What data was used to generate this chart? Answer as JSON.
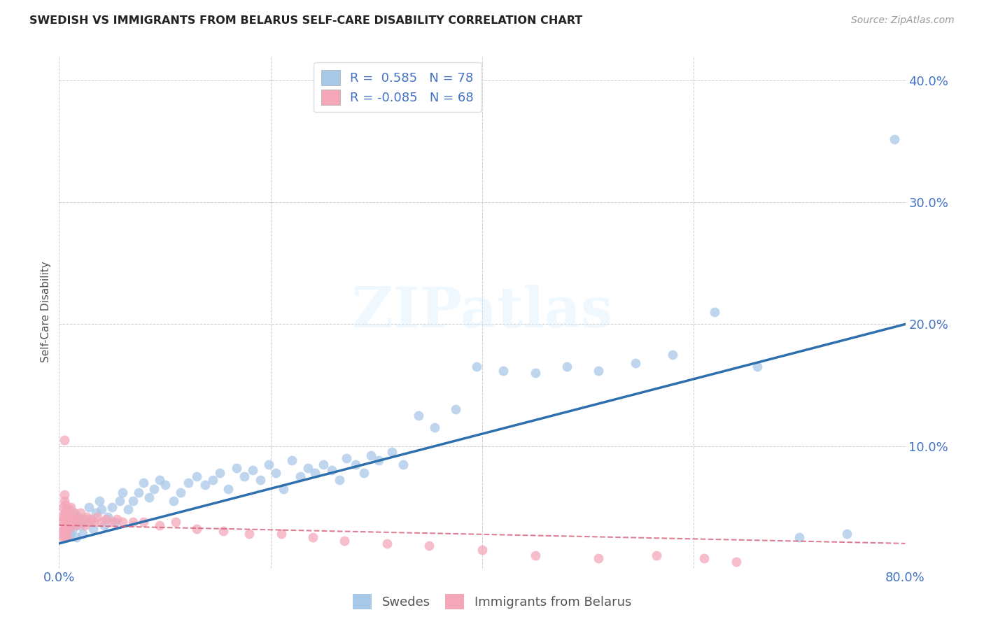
{
  "title": "SWEDISH VS IMMIGRANTS FROM BELARUS SELF-CARE DISABILITY CORRELATION CHART",
  "source": "Source: ZipAtlas.com",
  "ylabel": "Self-Care Disability",
  "xlim": [
    0.0,
    0.8
  ],
  "ylim": [
    0.0,
    0.42
  ],
  "blue_color": "#a8c8e8",
  "blue_line_color": "#2e6fad",
  "pink_color": "#f4a7b9",
  "pink_line_color": "#d45f7a",
  "background_color": "#ffffff",
  "watermark_text": "ZIPatlas",
  "swedes_R": 0.585,
  "swedes_N": 78,
  "belarus_R": -0.085,
  "belarus_N": 68,
  "legend_label_swedes": "Swedes",
  "legend_label_belarus": "Immigrants from Belarus",
  "blue_line_x0": 0.0,
  "blue_line_y0": 0.02,
  "blue_line_x1": 0.8,
  "blue_line_y1": 0.2,
  "pink_line_x0": 0.0,
  "pink_line_y0": 0.035,
  "pink_line_x1": 0.8,
  "pink_line_y1": 0.02,
  "swedes_x": [
    0.005,
    0.007,
    0.008,
    0.01,
    0.011,
    0.012,
    0.013,
    0.014,
    0.015,
    0.016,
    0.018,
    0.02,
    0.022,
    0.025,
    0.028,
    0.03,
    0.032,
    0.035,
    0.038,
    0.04,
    0.043,
    0.046,
    0.05,
    0.053,
    0.057,
    0.06,
    0.065,
    0.07,
    0.075,
    0.08,
    0.085,
    0.09,
    0.095,
    0.1,
    0.108,
    0.115,
    0.122,
    0.13,
    0.138,
    0.145,
    0.152,
    0.16,
    0.168,
    0.175,
    0.183,
    0.19,
    0.198,
    0.205,
    0.212,
    0.22,
    0.228,
    0.235,
    0.242,
    0.25,
    0.258,
    0.265,
    0.272,
    0.28,
    0.288,
    0.295,
    0.302,
    0.315,
    0.325,
    0.34,
    0.355,
    0.375,
    0.395,
    0.42,
    0.45,
    0.48,
    0.51,
    0.545,
    0.58,
    0.62,
    0.66,
    0.7,
    0.745,
    0.79
  ],
  "swedes_y": [
    0.03,
    0.025,
    0.035,
    0.03,
    0.028,
    0.04,
    0.032,
    0.045,
    0.038,
    0.025,
    0.042,
    0.035,
    0.028,
    0.04,
    0.05,
    0.038,
    0.032,
    0.045,
    0.055,
    0.048,
    0.035,
    0.042,
    0.05,
    0.038,
    0.055,
    0.062,
    0.048,
    0.055,
    0.062,
    0.07,
    0.058,
    0.065,
    0.072,
    0.068,
    0.055,
    0.062,
    0.07,
    0.075,
    0.068,
    0.072,
    0.078,
    0.065,
    0.082,
    0.075,
    0.08,
    0.072,
    0.085,
    0.078,
    0.065,
    0.088,
    0.075,
    0.082,
    0.078,
    0.085,
    0.08,
    0.072,
    0.09,
    0.085,
    0.078,
    0.092,
    0.088,
    0.095,
    0.085,
    0.125,
    0.115,
    0.13,
    0.165,
    0.162,
    0.16,
    0.165,
    0.162,
    0.168,
    0.175,
    0.21,
    0.165,
    0.025,
    0.028,
    0.352
  ],
  "belarus_x": [
    0.003,
    0.003,
    0.004,
    0.004,
    0.004,
    0.005,
    0.005,
    0.005,
    0.005,
    0.005,
    0.005,
    0.005,
    0.006,
    0.006,
    0.006,
    0.006,
    0.007,
    0.007,
    0.007,
    0.007,
    0.008,
    0.008,
    0.008,
    0.009,
    0.009,
    0.01,
    0.01,
    0.011,
    0.011,
    0.012,
    0.013,
    0.014,
    0.015,
    0.016,
    0.017,
    0.018,
    0.02,
    0.022,
    0.024,
    0.026,
    0.028,
    0.03,
    0.033,
    0.036,
    0.04,
    0.045,
    0.05,
    0.055,
    0.06,
    0.07,
    0.08,
    0.095,
    0.11,
    0.13,
    0.155,
    0.18,
    0.21,
    0.24,
    0.27,
    0.31,
    0.35,
    0.4,
    0.45,
    0.51,
    0.565,
    0.61,
    0.64,
    0.005
  ],
  "belarus_y": [
    0.03,
    0.042,
    0.025,
    0.05,
    0.038,
    0.035,
    0.045,
    0.055,
    0.025,
    0.032,
    0.04,
    0.06,
    0.028,
    0.038,
    0.045,
    0.052,
    0.035,
    0.042,
    0.048,
    0.03,
    0.038,
    0.025,
    0.045,
    0.032,
    0.042,
    0.038,
    0.048,
    0.035,
    0.05,
    0.042,
    0.038,
    0.045,
    0.04,
    0.035,
    0.042,
    0.038,
    0.045,
    0.04,
    0.035,
    0.042,
    0.038,
    0.04,
    0.038,
    0.042,
    0.038,
    0.04,
    0.038,
    0.04,
    0.038,
    0.038,
    0.038,
    0.035,
    0.038,
    0.032,
    0.03,
    0.028,
    0.028,
    0.025,
    0.022,
    0.02,
    0.018,
    0.015,
    0.01,
    0.008,
    0.01,
    0.008,
    0.005,
    0.105
  ]
}
